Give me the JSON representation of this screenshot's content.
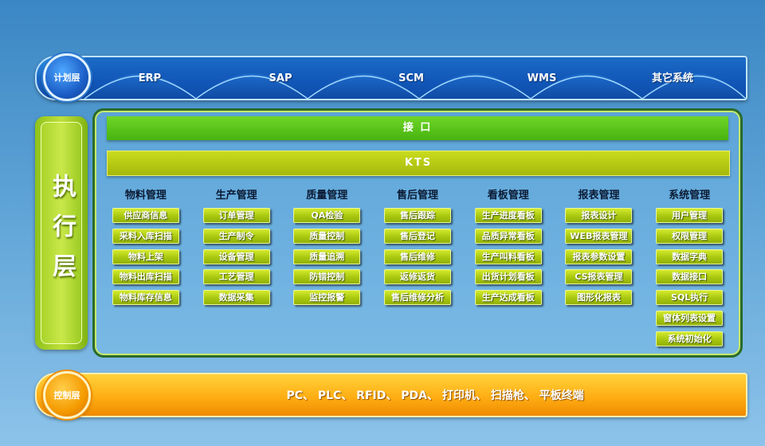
{
  "planning_layer": {
    "label": "计划层",
    "systems": [
      "ERP",
      "SAP",
      "SCM",
      "WMS",
      "其它系统"
    ]
  },
  "execution_layer": {
    "label": "执行层",
    "interface_bar": "接 口",
    "kts_bar": "KTS",
    "modules": [
      {
        "title": "物料管理",
        "items": [
          "供应商信息",
          "采料入库扫描",
          "物料上架",
          "物料出库扫描",
          "物料库存信息"
        ]
      },
      {
        "title": "生产管理",
        "items": [
          "订单管理",
          "生产制令",
          "设备管理",
          "工艺管理",
          "数据采集"
        ]
      },
      {
        "title": "质量管理",
        "items": [
          "QA检验",
          "质量控制",
          "质量追溯",
          "防错控制",
          "监控报警"
        ]
      },
      {
        "title": "售后管理",
        "items": [
          "售后跟踪",
          "售后登记",
          "售后维修",
          "返修返货",
          "售后维修分析"
        ]
      },
      {
        "title": "看板管理",
        "items": [
          "生产进度看板",
          "品质异常看板",
          "生产叫料看板",
          "出货计划看板",
          "生产达成看板"
        ]
      },
      {
        "title": "报表管理",
        "items": [
          "报表设计",
          "WEB报表管理",
          "报表参数设置",
          "CS报表管理",
          "图形化报表"
        ]
      },
      {
        "title": "系统管理",
        "items": [
          "用户管理",
          "权限管理",
          "数据字典",
          "数据接口",
          "SQL执行",
          "窗体列表设置",
          "系统初始化"
        ]
      }
    ]
  },
  "control_layer": {
    "label": "控制层",
    "devices": "PC、 PLC、 RFID、 PDA、 打印机、 扫描枪、 平板终端"
  },
  "colors": {
    "planning": "#1a63c2",
    "execution": "#a8c70f",
    "interface": "#47b310",
    "control": "#ffae14"
  }
}
